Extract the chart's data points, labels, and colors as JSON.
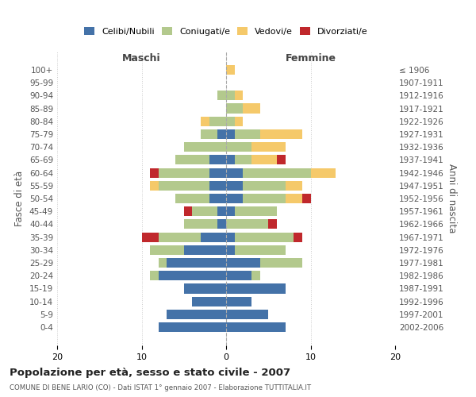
{
  "age_groups": [
    "0-4",
    "5-9",
    "10-14",
    "15-19",
    "20-24",
    "25-29",
    "30-34",
    "35-39",
    "40-44",
    "45-49",
    "50-54",
    "55-59",
    "60-64",
    "65-69",
    "70-74",
    "75-79",
    "80-84",
    "85-89",
    "90-94",
    "95-99",
    "100+"
  ],
  "birth_years": [
    "2002-2006",
    "1997-2001",
    "1992-1996",
    "1987-1991",
    "1982-1986",
    "1977-1981",
    "1972-1976",
    "1967-1971",
    "1962-1966",
    "1957-1961",
    "1952-1956",
    "1947-1951",
    "1942-1946",
    "1937-1941",
    "1932-1936",
    "1927-1931",
    "1922-1926",
    "1917-1921",
    "1912-1916",
    "1907-1911",
    "≤ 1906"
  ],
  "colors": {
    "celibi": "#4472a8",
    "coniugati": "#b3c98d",
    "vedovi": "#f5c96a",
    "divorziati": "#c0282c"
  },
  "maschi": {
    "celibi": [
      8,
      7,
      4,
      5,
      8,
      7,
      5,
      3,
      1,
      1,
      2,
      2,
      2,
      2,
      0,
      1,
      0,
      0,
      0,
      0,
      0
    ],
    "coniugati": [
      0,
      0,
      0,
      0,
      1,
      1,
      4,
      5,
      4,
      3,
      4,
      6,
      6,
      4,
      5,
      2,
      2,
      0,
      1,
      0,
      0
    ],
    "vedovi": [
      0,
      0,
      0,
      0,
      0,
      0,
      0,
      0,
      0,
      0,
      0,
      1,
      0,
      0,
      0,
      0,
      1,
      0,
      0,
      0,
      0
    ],
    "divorziati": [
      0,
      0,
      0,
      0,
      0,
      0,
      0,
      2,
      0,
      1,
      0,
      0,
      1,
      0,
      0,
      0,
      0,
      0,
      0,
      0,
      0
    ]
  },
  "femmine": {
    "celibi": [
      7,
      5,
      3,
      7,
      3,
      4,
      1,
      1,
      0,
      1,
      2,
      2,
      2,
      1,
      0,
      1,
      0,
      0,
      0,
      0,
      0
    ],
    "coniugati": [
      0,
      0,
      0,
      0,
      1,
      5,
      6,
      7,
      5,
      5,
      5,
      5,
      8,
      2,
      3,
      3,
      1,
      2,
      1,
      0,
      0
    ],
    "vedovi": [
      0,
      0,
      0,
      0,
      0,
      0,
      0,
      0,
      0,
      0,
      2,
      2,
      3,
      3,
      4,
      5,
      1,
      2,
      1,
      0,
      1
    ],
    "divorziati": [
      0,
      0,
      0,
      0,
      0,
      0,
      0,
      1,
      1,
      0,
      1,
      0,
      0,
      1,
      0,
      0,
      0,
      0,
      0,
      0,
      0
    ]
  },
  "title": "Popolazione per età, sesso e stato civile - 2007",
  "subtitle": "COMUNE DI BENE LARIO (CO) - Dati ISTAT 1° gennaio 2007 - Elaborazione TUTTITALIA.IT",
  "ylabel_left": "Fasce di età",
  "ylabel_right": "Anni di nascita",
  "xlabel_left": "Maschi",
  "xlabel_right": "Femmine"
}
